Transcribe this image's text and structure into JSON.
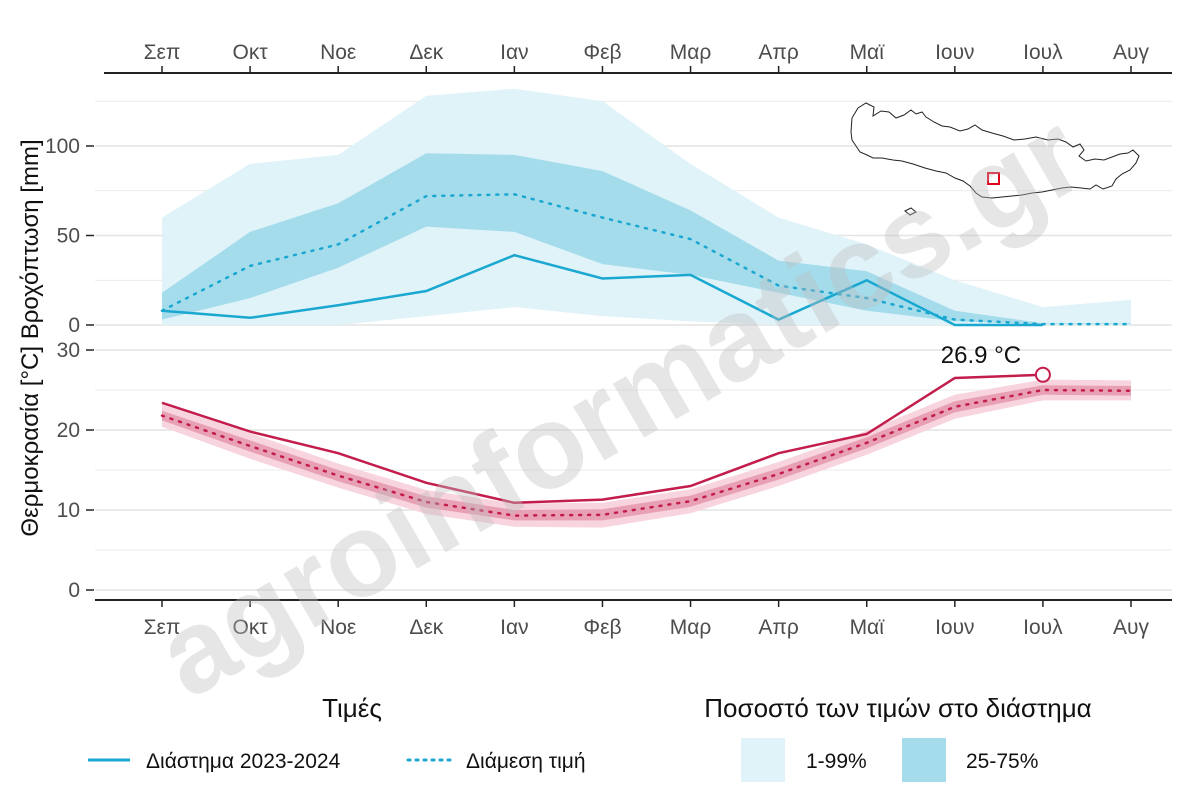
{
  "chart_data": {
    "type": "line",
    "months": [
      "Σεπ",
      "Οκτ",
      "Νοε",
      "Δεκ",
      "Ιαν",
      "Φεβ",
      "Μαρ",
      "Απρ",
      "Μαϊ",
      "Ιουν",
      "Ιουλ",
      "Αυγ"
    ],
    "ylabel": "Θερμοκρασία [°C] Βροχόπτωση [mm]",
    "watermark": "agroinformatics.gr",
    "precipitation": {
      "ylim": [
        0,
        130
      ],
      "ticks": [
        0,
        50,
        100
      ],
      "observed": [
        8,
        4,
        11,
        19,
        39,
        26,
        28,
        3,
        25,
        0,
        0,
        null
      ],
      "median": [
        8,
        33,
        45,
        72,
        73,
        60,
        48,
        22,
        15,
        3,
        0.5,
        0.5
      ],
      "p25": [
        3,
        15,
        32,
        55,
        52,
        34,
        28,
        18,
        8,
        2,
        0.5,
        0.5
      ],
      "p75": [
        18,
        52,
        68,
        96,
        95,
        86,
        64,
        36,
        30,
        8,
        1,
        1
      ],
      "p01": [
        0,
        0,
        0,
        5,
        10,
        5,
        2,
        0,
        0,
        0,
        0,
        0
      ],
      "p99": [
        60,
        90,
        95,
        128,
        132,
        125,
        90,
        60,
        45,
        25,
        10,
        14
      ]
    },
    "temperature": {
      "ylim": [
        -1,
        32
      ],
      "ticks": [
        0,
        10,
        20,
        30
      ],
      "observed": [
        23.4,
        19.8,
        17.1,
        13.4,
        10.9,
        11.3,
        13.0,
        17.1,
        19.5,
        26.5,
        26.9,
        null
      ],
      "median": [
        21.8,
        18.0,
        14.3,
        11.0,
        9.3,
        9.4,
        11.1,
        14.5,
        18.4,
        22.9,
        25.0,
        24.9
      ],
      "p25": [
        21.2,
        17.3,
        13.6,
        10.3,
        8.7,
        8.7,
        10.4,
        13.8,
        17.7,
        22.2,
        24.4,
        24.3
      ],
      "p75": [
        22.4,
        18.7,
        15.0,
        11.7,
        10.0,
        10.1,
        11.8,
        15.2,
        19.1,
        23.6,
        25.6,
        25.5
      ],
      "p01": [
        20.4,
        16.4,
        12.8,
        9.5,
        7.9,
        7.8,
        9.6,
        13.0,
        16.9,
        21.4,
        23.7,
        23.7
      ],
      "p99": [
        23.2,
        19.6,
        15.8,
        12.5,
        10.8,
        10.9,
        12.6,
        16.0,
        19.9,
        24.4,
        26.3,
        26.2
      ],
      "annotation": {
        "text": "26.9 °C",
        "month_index": 10,
        "value": 26.9
      }
    },
    "legend": {
      "values_title": "Τιμές",
      "observed_label": "Διάστημα 2023-2024",
      "median_label": "Διάμεση τιμή",
      "range_title": "Ποσοστό των τιμών στο διάστημα",
      "outer_label": "1-99%",
      "inner_label": "25-75%",
      "placement": "bottom"
    },
    "colors": {
      "precip_line": "#1aa7d0",
      "precip_outer": "#dff3f9",
      "precip_inner": "#a5dcec",
      "temp_line": "#c31d4c",
      "temp_outer": "#f7d4de",
      "temp_inner": "#e8a0b5",
      "grid": "#e4e4e4",
      "axis": "#222222",
      "tick_text": "#4d4d4d"
    }
  }
}
